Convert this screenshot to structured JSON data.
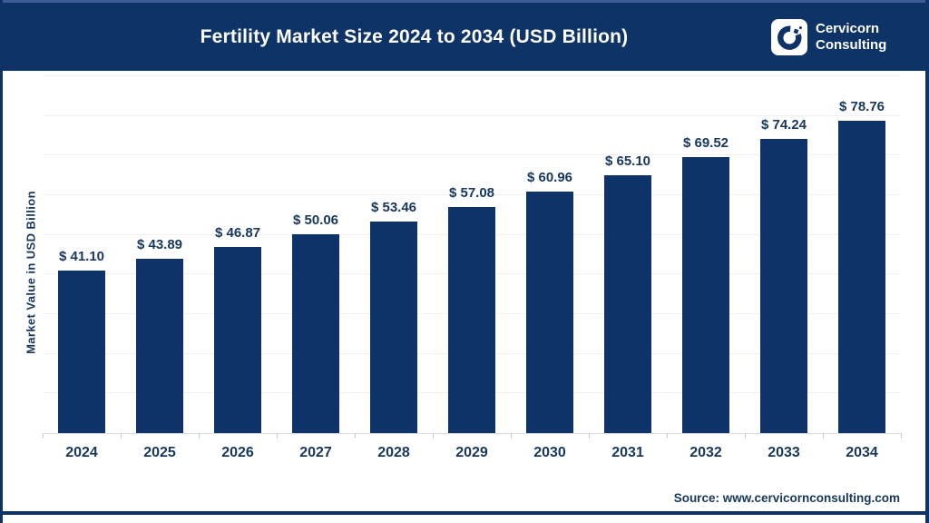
{
  "header": {
    "title": "Fertility Market Size 2024 to 2034 (USD Billion)",
    "brand": {
      "line1": "Cervicorn",
      "line2": "Consulting"
    }
  },
  "chart_data": {
    "type": "bar",
    "title": "Fertility Market Size 2024 to 2034 (USD Billion)",
    "categories": [
      "2024",
      "2025",
      "2026",
      "2027",
      "2028",
      "2029",
      "2030",
      "2031",
      "2032",
      "2033",
      "2034"
    ],
    "values": [
      41.1,
      43.89,
      46.87,
      50.06,
      53.46,
      57.08,
      60.96,
      65.1,
      69.52,
      74.24,
      78.76
    ],
    "value_prefix": "$ ",
    "value_decimals": 2,
    "xlabel": "",
    "ylabel": "Market Value in USD Billion",
    "ylim": [
      0,
      90
    ],
    "gridline_step": 10,
    "grid": true,
    "legend": false,
    "bar_color": "#0d3368"
  },
  "footer": {
    "source": "Source: www.cervicornconsulting.com"
  },
  "colors": {
    "navy": "#0e3366",
    "bar": "#0d3368",
    "label_text": "#17375e",
    "gridline": "#f1f1f1",
    "axis_line": "#dcdcdc",
    "background": "#ffffff"
  }
}
